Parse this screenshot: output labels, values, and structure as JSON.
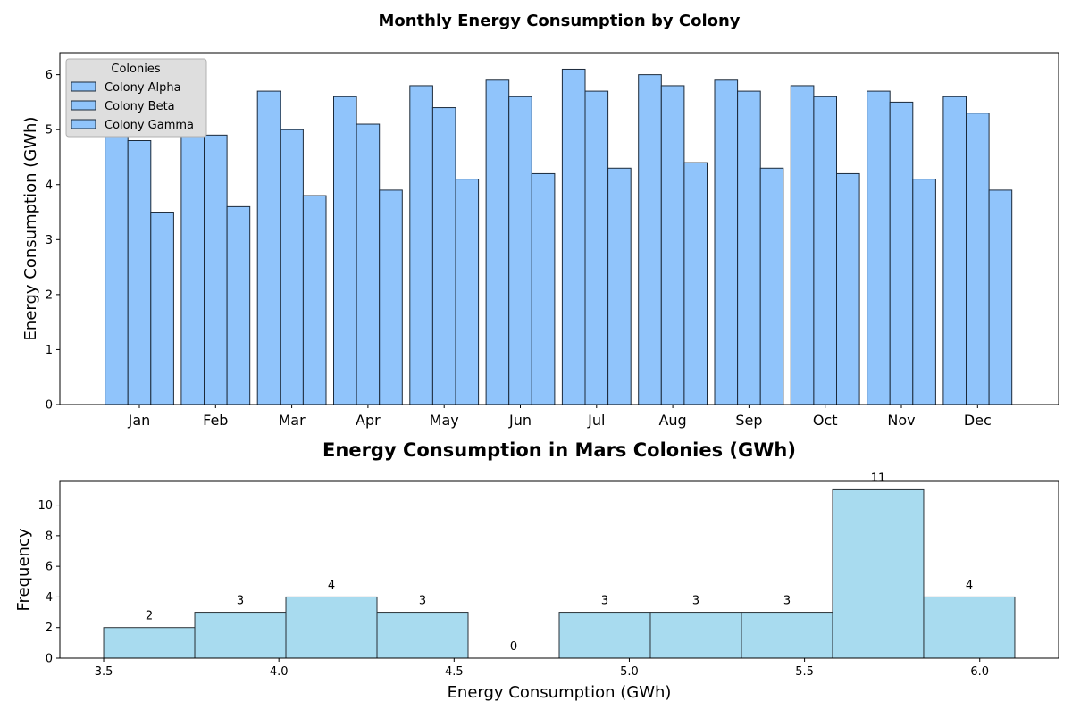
{
  "chart_data": [
    {
      "type": "bar",
      "title": "Monthly Energy Consumption by Colony",
      "xlabel": "",
      "ylabel": "Energy Consumption (GWh)",
      "categories": [
        "Jan",
        "Feb",
        "Mar",
        "Apr",
        "May",
        "Jun",
        "Jul",
        "Aug",
        "Sep",
        "Oct",
        "Nov",
        "Dec"
      ],
      "series": [
        {
          "name": "Colony Alpha",
          "values": [
            5.2,
            5.5,
            5.7,
            5.6,
            5.8,
            5.9,
            6.1,
            6.0,
            5.9,
            5.8,
            5.7,
            5.6
          ]
        },
        {
          "name": "Colony Beta",
          "values": [
            4.8,
            4.9,
            5.0,
            5.1,
            5.4,
            5.6,
            5.7,
            5.8,
            5.7,
            5.6,
            5.5,
            5.3
          ]
        },
        {
          "name": "Colony Gamma",
          "values": [
            3.5,
            3.6,
            3.8,
            3.9,
            4.1,
            4.2,
            4.3,
            4.4,
            4.3,
            4.2,
            4.1,
            3.9
          ]
        }
      ],
      "ylim": [
        0,
        6.4
      ],
      "yticks": [
        0,
        1,
        2,
        3,
        4,
        5,
        6
      ],
      "bar_color": "#90c4fb",
      "edge_color": "#1c2a3a",
      "legend": {
        "title": "Colonies",
        "position": "top-left"
      },
      "grid": false
    },
    {
      "type": "bar",
      "title": "Energy Consumption in Mars Colonies (GWh)",
      "xlabel": "Energy Consumption (GWh)",
      "ylabel": "Frequency",
      "bin_edges": [
        3.5,
        3.76,
        4.02,
        4.28,
        4.54,
        4.8,
        5.06,
        5.32,
        5.58,
        5.84,
        6.1
      ],
      "values": [
        2,
        3,
        4,
        3,
        0,
        3,
        3,
        3,
        11,
        4
      ],
      "data_labels": [
        "2",
        "3",
        "4",
        "3",
        "0",
        "3",
        "3",
        "3",
        "11",
        "4"
      ],
      "xlim": [
        3.375,
        6.225
      ],
      "xticks": [
        "3.5",
        "4.0",
        "4.5",
        "5.0",
        "5.5",
        "6.0"
      ],
      "ylim": [
        0,
        11.55
      ],
      "yticks": [
        0,
        2,
        4,
        6,
        8,
        10
      ],
      "bar_color": "#a8dbef",
      "edge_color": "#2a3238",
      "grid": false
    }
  ]
}
